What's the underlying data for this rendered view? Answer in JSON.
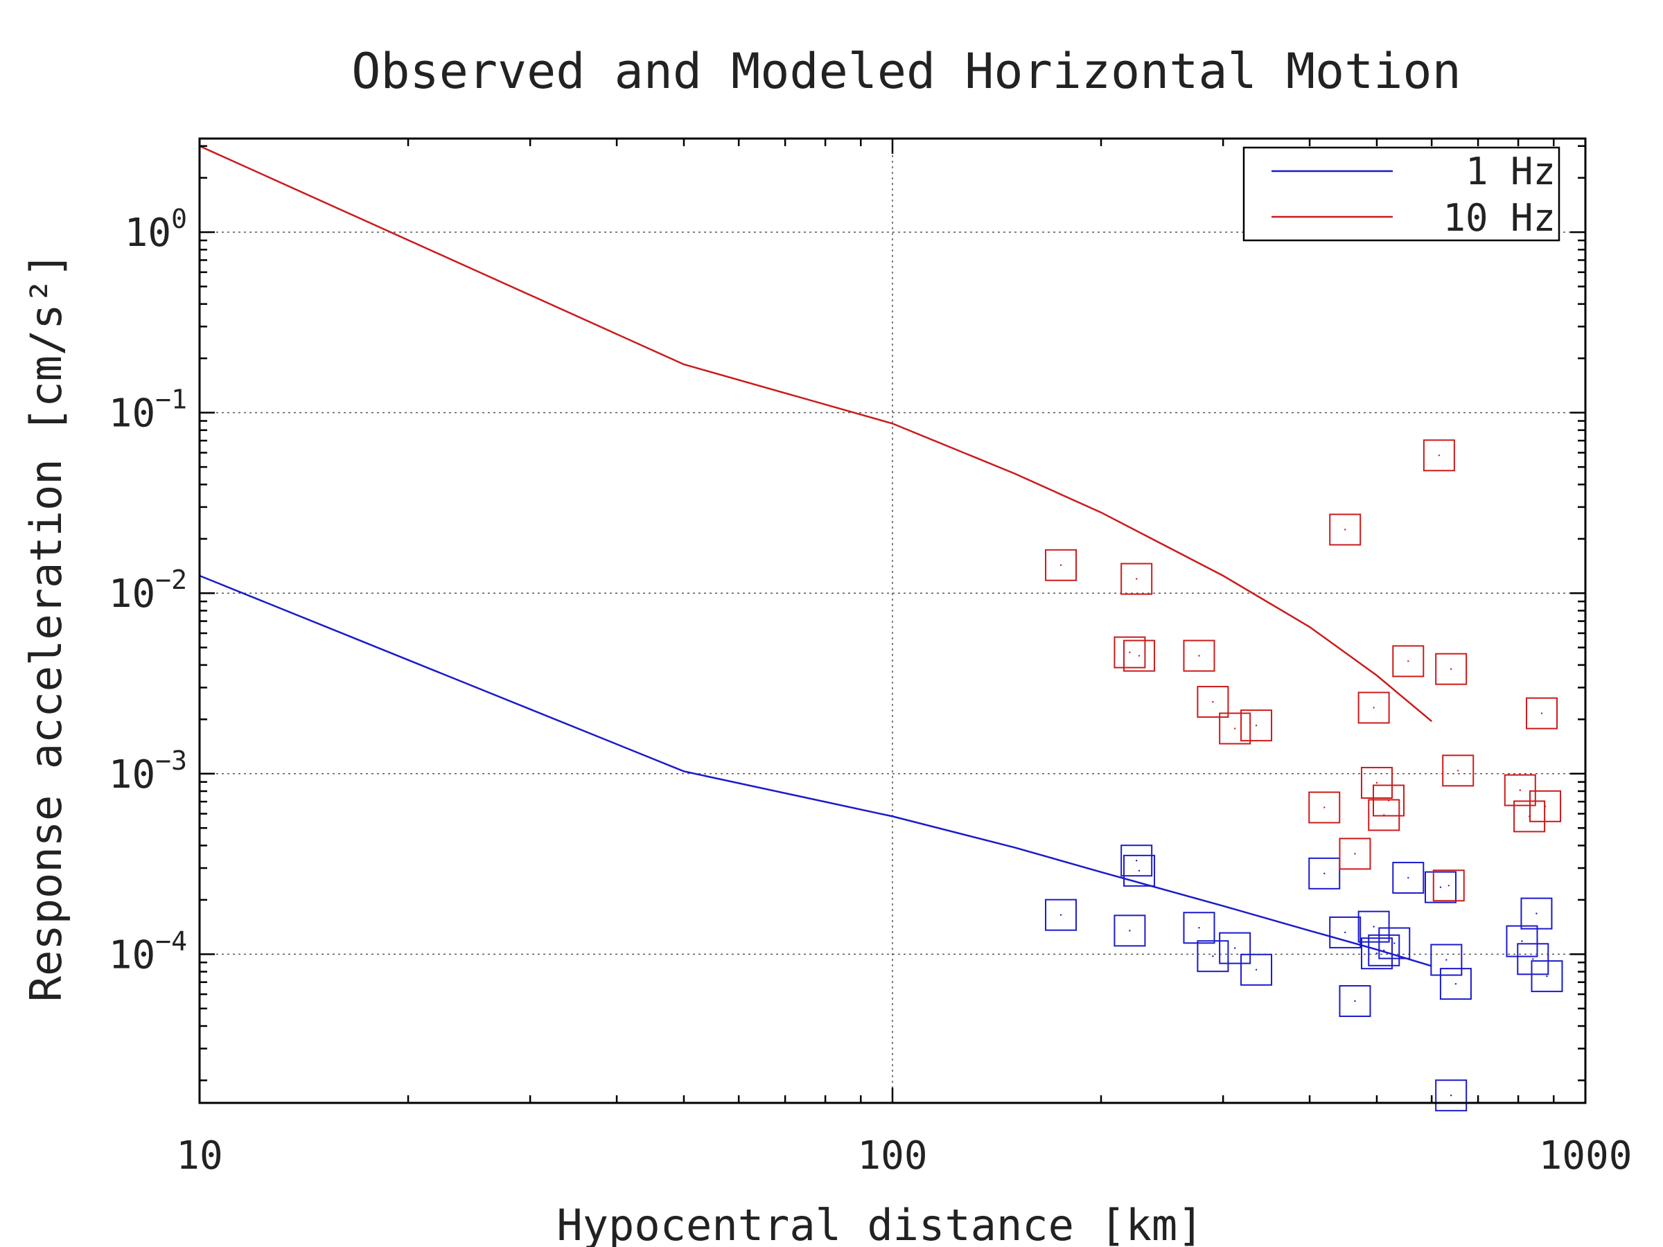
{
  "chart_data": {
    "type": "scatter",
    "title": "Observed and Modeled Horizontal Motion",
    "xlabel": "Hypocentral distance [km]",
    "ylabel": "Response acceleration [cm/s²]",
    "xscale": "log",
    "yscale": "log",
    "xlim": [
      10,
      1000
    ],
    "ylim": [
      1.5e-05,
      3.3
    ],
    "grid": true,
    "legend": "top-right",
    "x_ticks": [
      {
        "value": 10,
        "label": "10"
      },
      {
        "value": 100,
        "label": "100"
      },
      {
        "value": 1000,
        "label": "1000"
      }
    ],
    "y_ticks": [
      {
        "value": 1,
        "base": "10",
        "exp": "0"
      },
      {
        "value": 0.1,
        "base": "10",
        "exp": "−1"
      },
      {
        "value": 0.01,
        "base": "10",
        "exp": "−2"
      },
      {
        "value": 0.001,
        "base": "10",
        "exp": "−3"
      },
      {
        "value": 0.0001,
        "base": "10",
        "exp": "−4"
      }
    ],
    "series": [
      {
        "name": "1 Hz",
        "color": "#1a1acc",
        "line": {
          "x": [
            10,
            50,
            100,
            150,
            200,
            300,
            400,
            500,
            600
          ],
          "y": [
            0.0125,
            0.00103,
            0.00058,
            0.00039,
            0.000285,
            0.000185,
            0.000135,
            0.000106,
            8.6e-05
          ]
        },
        "observed": {
          "x": [
            175,
            220,
            225,
            227,
            277,
            290,
            312,
            335,
            420,
            450,
            465,
            495,
            500,
            512,
            530,
            555,
            618,
            630,
            640,
            650,
            810,
            840,
            850,
            880
          ],
          "y": [
            0.000165,
            0.000135,
            0.00033,
            0.00029,
            0.00014,
            9.75e-05,
            0.000108,
            8.2e-05,
            0.00028,
            0.000132,
            5.5e-05,
            0.000142,
            0.000101,
            0.000105,
            0.000115,
            0.000265,
            0.000235,
            9.3e-05,
            1.65e-05,
            6.85e-05,
            0.000118,
            9.4e-05,
            0.000168,
            7.55e-05
          ]
        }
      },
      {
        "name": "10 Hz",
        "color": "#cc1a1a",
        "line": {
          "x": [
            10,
            50,
            100,
            150,
            200,
            300,
            400,
            500,
            600
          ],
          "y": [
            3.0,
            0.185,
            0.087,
            0.046,
            0.028,
            0.0125,
            0.0065,
            0.0035,
            0.00195
          ]
        },
        "observed": {
          "x": [
            175,
            220,
            225,
            227,
            277,
            290,
            312,
            335,
            420,
            450,
            465,
            495,
            500,
            512,
            520,
            555,
            615,
            635,
            640,
            655,
            805,
            830,
            865,
            875
          ],
          "y": [
            0.0143,
            0.0047,
            0.012,
            0.0045,
            0.0045,
            0.0025,
            0.00178,
            0.00185,
            0.00065,
            0.0225,
            0.00036,
            0.00232,
            0.00089,
            0.00059,
            0.00071,
            0.0042,
            0.058,
            0.00024,
            0.0038,
            0.00104,
            0.00081,
            0.00058,
            0.00216,
            0.00066
          ]
        }
      }
    ]
  }
}
